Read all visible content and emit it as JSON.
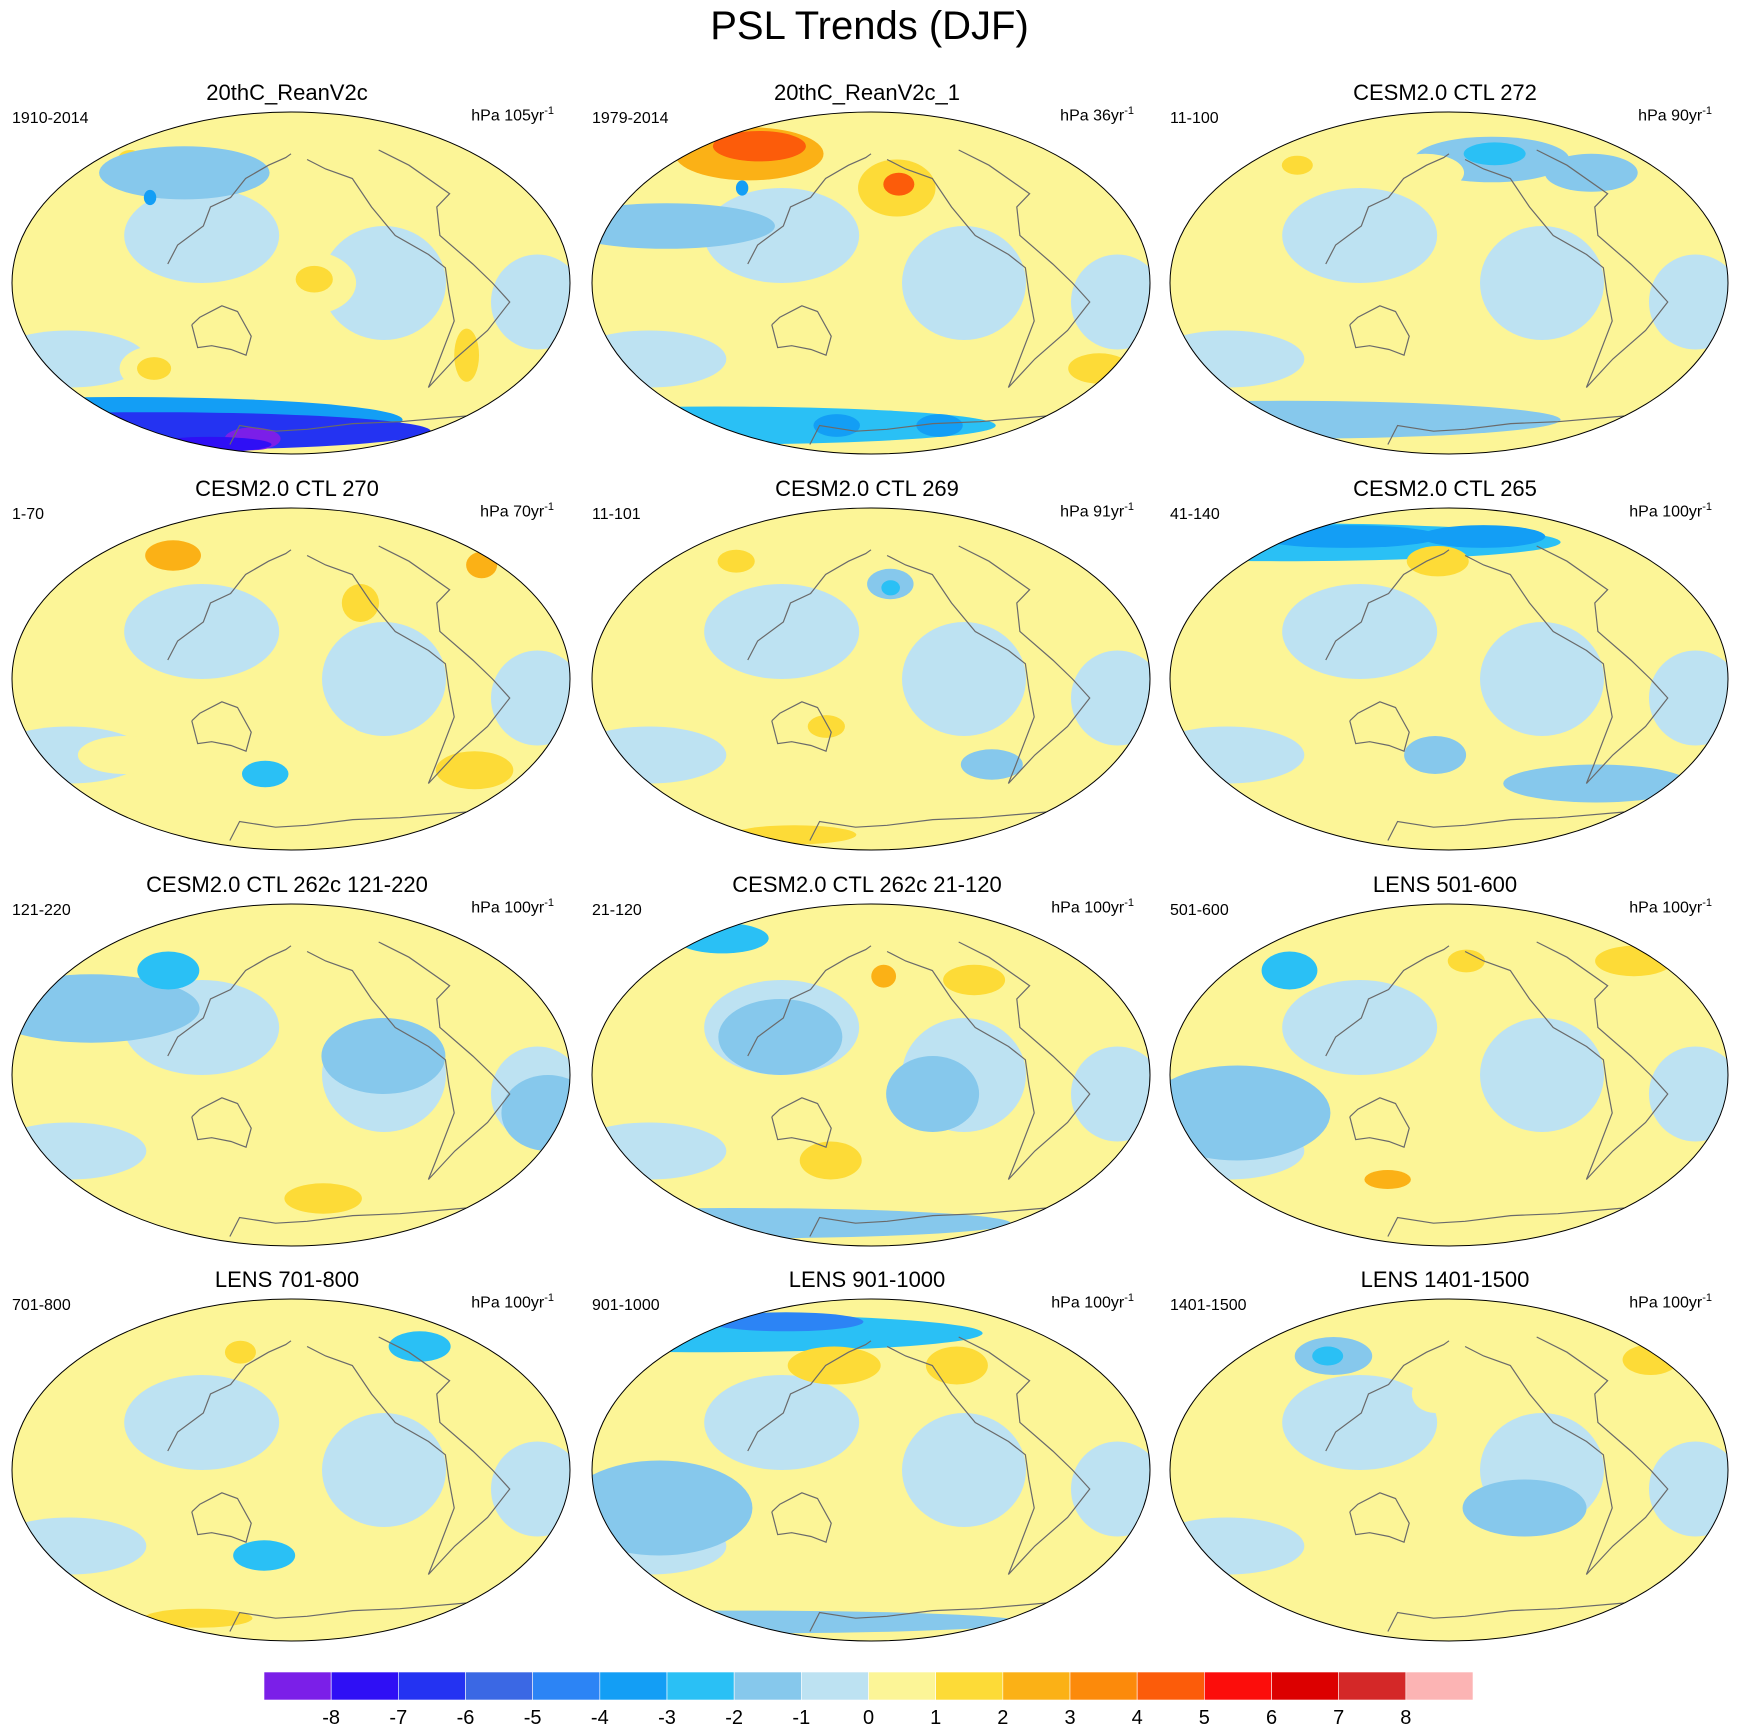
{
  "title": "PSL Trends (DJF)",
  "panels": [
    {
      "title": "20thC_ReanV2c",
      "period": "1910-2014",
      "units_prefix": "hPa",
      "units_span": "105",
      "units_suffix": "yr",
      "units_exp": "-1",
      "blobs": [
        {
          "lon": -170,
          "lat": 0,
          "rx": 32,
          "ry": 17,
          "level": 1
        },
        {
          "lon": -165,
          "lat": 2,
          "rx": 12,
          "ry": 7,
          "level": 2
        },
        {
          "lon": 80,
          "lat": -45,
          "rx": 24,
          "ry": 12,
          "level": 1
        },
        {
          "lon": 78,
          "lat": -45,
          "rx": 11,
          "ry": 6,
          "level": 2
        },
        {
          "lon": 25,
          "lat": 62,
          "rx": 20,
          "ry": 10,
          "level": 1
        },
        {
          "lon": 30,
          "lat": 65,
          "rx": 8,
          "ry": 5,
          "level": 2
        },
        {
          "lon": 90,
          "lat": 58,
          "rx": 55,
          "ry": 14,
          "level": -1
        },
        {
          "lon": 75,
          "lat": 45,
          "rx": 4,
          "ry": 4,
          "level": -3
        },
        {
          "lon": -55,
          "lat": -38,
          "rx": 8,
          "ry": 14,
          "level": 2
        },
        {
          "lon": 0,
          "lat": -72,
          "rx": 180,
          "ry": 12,
          "level": -3
        },
        {
          "lon": 0,
          "lat": -78,
          "rx": 180,
          "ry": 10,
          "level": -6
        },
        {
          "lon": 120,
          "lat": -82,
          "rx": 18,
          "ry": 6,
          "level": -8
        },
        {
          "lon": 20,
          "lat": -85,
          "rx": 40,
          "ry": 4,
          "level": -7
        }
      ]
    },
    {
      "title": "20thC_ReanV2c_1",
      "period": "1979-2014",
      "units_prefix": "hPa",
      "units_span": "36",
      "units_suffix": "yr",
      "units_exp": "-1",
      "blobs": [
        {
          "lon": 60,
          "lat": 68,
          "rx": 48,
          "ry": 14,
          "level": 3
        },
        {
          "lon": 60,
          "lat": 72,
          "rx": 30,
          "ry": 8,
          "level": 5
        },
        {
          "lon": -160,
          "lat": 50,
          "rx": 25,
          "ry": 15,
          "level": 2
        },
        {
          "lon": -158,
          "lat": 52,
          "rx": 10,
          "ry": 6,
          "level": 5
        },
        {
          "lon": 40,
          "lat": 30,
          "rx": 70,
          "ry": 12,
          "level": -1
        },
        {
          "lon": 80,
          "lat": 50,
          "rx": 4,
          "ry": 4,
          "level": -3
        },
        {
          "lon": -150,
          "lat": -45,
          "rx": 18,
          "ry": 8,
          "level": 1
        },
        {
          "lon": -10,
          "lat": -45,
          "rx": 20,
          "ry": 8,
          "level": 2
        },
        {
          "lon": 0,
          "lat": -75,
          "rx": 180,
          "ry": 10,
          "level": -2
        },
        {
          "lon": 140,
          "lat": -75,
          "rx": 15,
          "ry": 6,
          "level": -3
        },
        {
          "lon": -100,
          "lat": -75,
          "rx": 15,
          "ry": 6,
          "level": -3
        }
      ]
    },
    {
      "title": "CESM2.0 CTL 272",
      "period": "11-100",
      "units_prefix": "hPa",
      "units_span": "90",
      "units_suffix": "yr",
      "units_exp": "-1",
      "blobs": [
        {
          "lon": -140,
          "lat": 65,
          "rx": 50,
          "ry": 12,
          "level": -1
        },
        {
          "lon": -135,
          "lat": 68,
          "rx": 20,
          "ry": 6,
          "level": -2
        },
        {
          "lon": 40,
          "lat": 60,
          "rx": 25,
          "ry": 10,
          "level": 1
        },
        {
          "lon": 45,
          "lat": 62,
          "rx": 10,
          "ry": 5,
          "level": 2
        },
        {
          "lon": 160,
          "lat": 58,
          "rx": 25,
          "ry": 10,
          "level": 1
        },
        {
          "lon": -60,
          "lat": 58,
          "rx": 30,
          "ry": 10,
          "level": -1
        },
        {
          "lon": 0,
          "lat": -72,
          "rx": 180,
          "ry": 10,
          "level": -1
        },
        {
          "lon": -60,
          "lat": -50,
          "rx": 20,
          "ry": 8,
          "level": 1
        }
      ]
    },
    {
      "title": "CESM2.0 CTL 270",
      "period": "1-70",
      "units_prefix": "hPa",
      "units_span": "70",
      "units_suffix": "yr",
      "units_exp": "-1",
      "blobs": [
        {
          "lon": 70,
          "lat": 62,
          "rx": 30,
          "ry": 12,
          "level": 1
        },
        {
          "lon": 70,
          "lat": 65,
          "rx": 18,
          "ry": 8,
          "level": 3
        },
        {
          "lon": -15,
          "lat": 58,
          "rx": 20,
          "ry": 12,
          "level": 1
        },
        {
          "lon": -15,
          "lat": 60,
          "rx": 10,
          "ry": 7,
          "level": 3
        },
        {
          "lon": -130,
          "lat": 40,
          "rx": 12,
          "ry": 10,
          "level": 2
        },
        {
          "lon": -40,
          "lat": -48,
          "rx": 25,
          "ry": 10,
          "level": 2
        },
        {
          "lon": 160,
          "lat": -50,
          "rx": 15,
          "ry": 7,
          "level": -2
        },
        {
          "lon": -150,
          "lat": -35,
          "rx": 20,
          "ry": 12,
          "level": 1
        },
        {
          "lon": 60,
          "lat": -40,
          "rx": 30,
          "ry": 10,
          "level": 1
        }
      ]
    },
    {
      "title": "CESM2.0 CTL 269",
      "period": "11-101",
      "units_prefix": "hPa",
      "units_span": "91",
      "units_suffix": "yr",
      "units_exp": "-1",
      "blobs": [
        {
          "lon": 60,
          "lat": 60,
          "rx": 25,
          "ry": 10,
          "level": 1
        },
        {
          "lon": 60,
          "lat": 62,
          "rx": 12,
          "ry": 6,
          "level": 2
        },
        {
          "lon": -165,
          "lat": 50,
          "rx": 15,
          "ry": 8,
          "level": -1
        },
        {
          "lon": -165,
          "lat": 48,
          "rx": 6,
          "ry": 4,
          "level": -2
        },
        {
          "lon": 150,
          "lat": -20,
          "rx": 40,
          "ry": 18,
          "level": 1
        },
        {
          "lon": 150,
          "lat": -25,
          "rx": 12,
          "ry": 6,
          "level": 2
        },
        {
          "lon": 0,
          "lat": -78,
          "rx": 180,
          "ry": 8,
          "level": 1
        },
        {
          "lon": 60,
          "lat": -82,
          "rx": 40,
          "ry": 5,
          "level": 2
        },
        {
          "lon": -90,
          "lat": -45,
          "rx": 20,
          "ry": 8,
          "level": -1
        }
      ]
    },
    {
      "title": "CESM2.0 CTL 265",
      "period": "41-140",
      "units_prefix": "hPa",
      "units_span": "100",
      "units_suffix": "yr",
      "units_exp": "-1",
      "blobs": [
        {
          "lon": 0,
          "lat": 72,
          "rx": 180,
          "ry": 10,
          "level": -2
        },
        {
          "lon": 60,
          "lat": 75,
          "rx": 60,
          "ry": 6,
          "level": -3
        },
        {
          "lon": -140,
          "lat": 75,
          "rx": 40,
          "ry": 6,
          "level": -3
        },
        {
          "lon": 170,
          "lat": 62,
          "rx": 20,
          "ry": 8,
          "level": 2
        },
        {
          "lon": -170,
          "lat": 42,
          "rx": 20,
          "ry": 7,
          "level": 1
        },
        {
          "lon": 170,
          "lat": -40,
          "rx": 20,
          "ry": 10,
          "level": -1
        },
        {
          "lon": -60,
          "lat": -55,
          "rx": 60,
          "ry": 10,
          "level": -1
        }
      ]
    },
    {
      "title": "CESM2.0 CTL 262c 121-220",
      "period": "121-220",
      "units_prefix": "hPa",
      "units_span": "100",
      "units_suffix": "yr",
      "units_exp": "-1",
      "blobs": [
        {
          "lon": 40,
          "lat": 35,
          "rx": 70,
          "ry": 18,
          "level": -1
        },
        {
          "lon": 80,
          "lat": 55,
          "rx": 20,
          "ry": 10,
          "level": -2
        },
        {
          "lon": -120,
          "lat": 10,
          "rx": 40,
          "ry": 20,
          "level": -1
        },
        {
          "lon": -10,
          "lat": -20,
          "rx": 30,
          "ry": 20,
          "level": -1
        },
        {
          "lon": 60,
          "lat": -72,
          "rx": 40,
          "ry": 8,
          "level": 1
        },
        {
          "lon": -150,
          "lat": -65,
          "rx": 25,
          "ry": 8,
          "level": 2
        }
      ]
    },
    {
      "title": "CESM2.0 CTL 262c 21-120",
      "period": "21-120",
      "units_prefix": "hPa",
      "units_span": "100",
      "units_suffix": "yr",
      "units_exp": "-1",
      "blobs": [
        {
          "lon": -170,
          "lat": 50,
          "rx": 18,
          "ry": 12,
          "level": 1
        },
        {
          "lon": -170,
          "lat": 52,
          "rx": 8,
          "ry": 6,
          "level": 3
        },
        {
          "lon": -100,
          "lat": 50,
          "rx": 20,
          "ry": 8,
          "level": 2
        },
        {
          "lon": 20,
          "lat": 72,
          "rx": 30,
          "ry": 8,
          "level": -2
        },
        {
          "lon": 150,
          "lat": -45,
          "rx": 20,
          "ry": 10,
          "level": 2
        },
        {
          "lon": 0,
          "lat": -78,
          "rx": 180,
          "ry": 8,
          "level": -1
        },
        {
          "lon": 120,
          "lat": 20,
          "rx": 40,
          "ry": 20,
          "level": -1
        },
        {
          "lon": -140,
          "lat": -10,
          "rx": 30,
          "ry": 20,
          "level": -1
        }
      ]
    },
    {
      "title": "LENS 501-600",
      "period": "501-600",
      "units_prefix": "hPa",
      "units_span": "100",
      "units_suffix": "yr",
      "units_exp": "-1",
      "blobs": [
        {
          "lon": -170,
          "lat": 58,
          "rx": 30,
          "ry": 10,
          "level": 1
        },
        {
          "lon": -165,
          "lat": 60,
          "rx": 12,
          "ry": 6,
          "level": 2
        },
        {
          "lon": 130,
          "lat": -55,
          "rx": 35,
          "ry": 10,
          "level": 1
        },
        {
          "lon": 130,
          "lat": -55,
          "rx": 15,
          "ry": 5,
          "level": 3
        },
        {
          "lon": 50,
          "lat": 55,
          "rx": 18,
          "ry": 10,
          "level": -2
        },
        {
          "lon": -20,
          "lat": 60,
          "rx": 25,
          "ry": 8,
          "level": 2
        },
        {
          "lon": 40,
          "lat": -20,
          "rx": 60,
          "ry": 25,
          "level": -1
        }
      ]
    },
    {
      "title": "LENS 701-800",
      "period": "701-800",
      "units_prefix": "hPa",
      "units_span": "100",
      "units_suffix": "yr",
      "units_exp": "-1",
      "blobs": [
        {
          "lon": 135,
          "lat": 60,
          "rx": 20,
          "ry": 12,
          "level": 1
        },
        {
          "lon": 135,
          "lat": 62,
          "rx": 10,
          "ry": 6,
          "level": 2
        },
        {
          "lon": 0,
          "lat": -78,
          "rx": 180,
          "ry": 8,
          "level": 1
        },
        {
          "lon": 60,
          "lat": -78,
          "rx": 35,
          "ry": 5,
          "level": 2
        },
        {
          "lon": -60,
          "lat": 65,
          "rx": 20,
          "ry": 8,
          "level": -2
        },
        {
          "lon": 160,
          "lat": -45,
          "rx": 20,
          "ry": 8,
          "level": -2
        }
      ]
    },
    {
      "title": "LENS 901-1000",
      "period": "901-1000",
      "units_prefix": "hPa",
      "units_span": "100",
      "units_suffix": "yr",
      "units_exp": "-1",
      "blobs": [
        {
          "lon": 0,
          "lat": 72,
          "rx": 180,
          "ry": 10,
          "level": -2
        },
        {
          "lon": 70,
          "lat": 78,
          "rx": 50,
          "ry": 5,
          "level": -4
        },
        {
          "lon": 150,
          "lat": 55,
          "rx": 30,
          "ry": 10,
          "level": 2
        },
        {
          "lon": -110,
          "lat": 55,
          "rx": 20,
          "ry": 10,
          "level": 2
        },
        {
          "lon": 40,
          "lat": -20,
          "rx": 60,
          "ry": 25,
          "level": -1
        },
        {
          "lon": 0,
          "lat": -80,
          "rx": 180,
          "ry": 6,
          "level": -1
        }
      ]
    },
    {
      "title": "LENS 1401-1500",
      "period": "1401-1500",
      "units_prefix": "hPa",
      "units_span": "100",
      "units_suffix": "yr",
      "units_exp": "-1",
      "blobs": [
        {
          "lon": 80,
          "lat": 60,
          "rx": 25,
          "ry": 10,
          "level": -1
        },
        {
          "lon": 75,
          "lat": 60,
          "rx": 10,
          "ry": 5,
          "level": -2
        },
        {
          "lon": -10,
          "lat": 58,
          "rx": 18,
          "ry": 8,
          "level": 2
        },
        {
          "lon": 170,
          "lat": 40,
          "rx": 15,
          "ry": 10,
          "level": 1
        },
        {
          "lon": -130,
          "lat": -20,
          "rx": 40,
          "ry": 15,
          "level": -1
        },
        {
          "lon": 160,
          "lat": -55,
          "rx": 20,
          "ry": 8,
          "level": 1
        }
      ]
    }
  ],
  "colorbar": {
    "ticks": [
      "-8",
      "-7",
      "-6",
      "-5",
      "-4",
      "-3",
      "-2",
      "-1",
      "0",
      "1",
      "2",
      "3",
      "4",
      "5",
      "6",
      "7",
      "8"
    ],
    "colors": [
      "#7b1fe8",
      "#2f0ff5",
      "#2433f2",
      "#3b68e4",
      "#2c84f5",
      "#139ef5",
      "#2ac0f5",
      "#86c8ec",
      "#bde2f2",
      "#fcf597",
      "#fddb37",
      "#fbb116",
      "#fc8a0b",
      "#fc5c0a",
      "#fc0d0b",
      "#dc0000",
      "#d42828",
      "#fcb4b4"
    ],
    "level_colors": {
      "-8": "#7b1fe8",
      "-7": "#2f0ff5",
      "-6": "#2433f2",
      "-5": "#3b68e4",
      "-4": "#2c84f5",
      "-3": "#139ef5",
      "-2": "#2ac0f5",
      "-1": "#86c8ec",
      "0": "#bde2f2",
      "1": "#fcf597",
      "2": "#fddb37",
      "3": "#fbb116",
      "4": "#fc8a0b",
      "5": "#fc5c0a",
      "6": "#fc0d0b",
      "7": "#dc0000",
      "8": "#d42828"
    },
    "base_color": "#fcf597"
  }
}
